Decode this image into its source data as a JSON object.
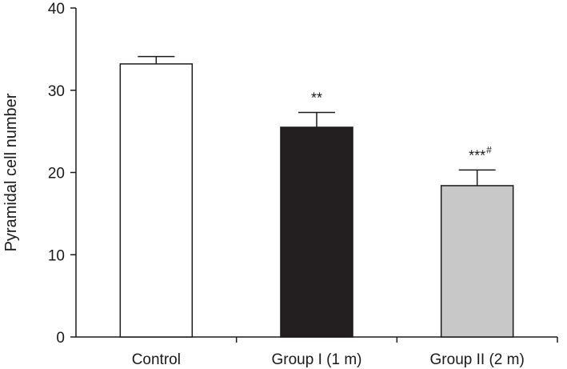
{
  "chart_data": {
    "type": "bar",
    "title": "",
    "xlabel": "",
    "ylabel": "Pyramidal cell number",
    "ylim": [
      0,
      40
    ],
    "yticks": [
      0,
      10,
      20,
      30,
      40
    ],
    "grid": false,
    "categories": [
      "Control",
      "Group I (1 m)",
      "Group II (2 m)"
    ],
    "values": [
      33.2,
      25.5,
      18.4
    ],
    "error": [
      0.9,
      1.8,
      1.9
    ],
    "bar_colors": [
      "#ffffff",
      "#231f20",
      "#c8c8c8"
    ],
    "annotations": [
      {
        "category": "Group I (1 m)",
        "text": "**",
        "superscript": ""
      },
      {
        "category": "Group II (2 m)",
        "text": "***",
        "superscript": "#"
      }
    ]
  }
}
